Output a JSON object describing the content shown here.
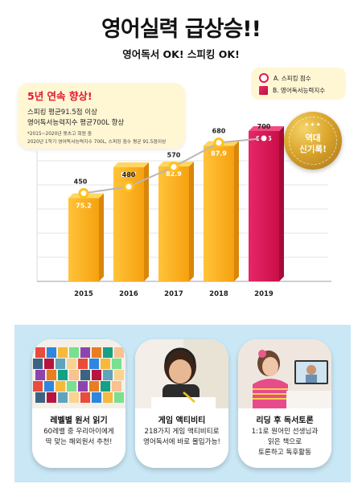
{
  "title": "영어실력 급상승!!",
  "subtitle": "영어독서 OK! 스피킹 OK!",
  "callout": {
    "headline": "5년 연속 향상!",
    "line1": "스피킹 평균91.5점 이상",
    "line2": "영어독서능력지수 평균700L 향상",
    "note1": "*2015~2020년 렛츠고 회원 중",
    "note2": "2020년 1학기 영어독서능력지수 700L, 스피킹 점수 평균 91.5점이상"
  },
  "legend": {
    "a": "A. 스피킹 점수",
    "b": "B. 영어독서능력지수"
  },
  "seal": {
    "stars": "★★★",
    "line1": "역대",
    "line2": "신기록!"
  },
  "colors": {
    "bar": "#f7a812",
    "bar_highlight": "#d8124f",
    "line": "#bbbbbb",
    "marker": "#ffc21e",
    "marker_last": "#d81b5a"
  },
  "chart_data": {
    "type": "bar",
    "categories": [
      "2015",
      "2016",
      "2017",
      "2018",
      "2019"
    ],
    "series": [
      {
        "name": "A. 스피킹 점수",
        "type": "bar",
        "values": [
          75.2,
          82.7,
          82.9,
          87.9,
          91.5
        ]
      },
      {
        "name": "B. 영어독서능력지수",
        "type": "line",
        "values": [
          450,
          480,
          570,
          680,
          700
        ]
      }
    ],
    "grid": true
  },
  "cards": [
    {
      "title": "레벨별 원서 읽기",
      "desc": [
        "60레벨 중 우리아이에게",
        "딱 맞는 해외원서 추천!"
      ],
      "icon": "books-image"
    },
    {
      "title": "게임 액티비티",
      "desc": [
        "218가지 게임 액티비티로",
        "영어독서에 바로 몰입가능!"
      ],
      "icon": "child-writing-image"
    },
    {
      "title": "리딩 후 독서토론",
      "desc": [
        "1:1로 원어민 선생님과",
        "읽은 책으로",
        "토론하고 독후활동"
      ],
      "icon": "video-call-image"
    }
  ]
}
